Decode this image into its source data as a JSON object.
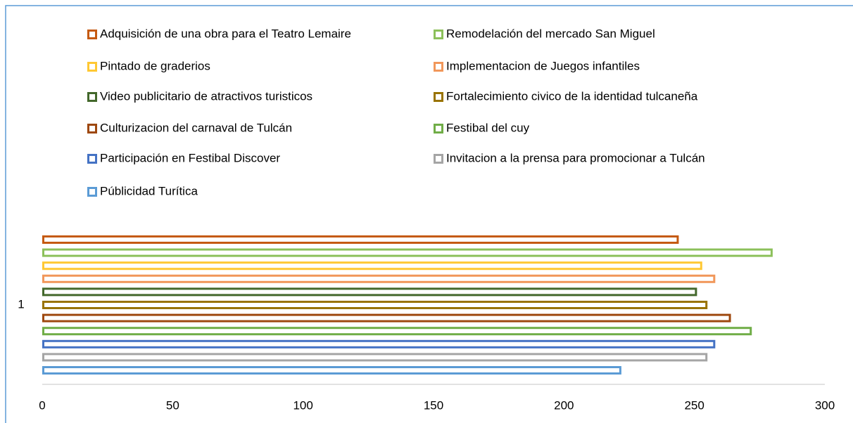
{
  "chart_data": {
    "type": "bar",
    "orientation": "horizontal",
    "categories": [
      "1"
    ],
    "series": [
      {
        "name": "Adquisición de una obra para el Teatro Lemaire",
        "color": "#c55a11",
        "values": [
          244
        ]
      },
      {
        "name": "Remodelación del mercado San Miguel",
        "color": "#8cc05a",
        "values": [
          280
        ]
      },
      {
        "name": "Pintado de graderios",
        "color": "#ffc833",
        "values": [
          253
        ]
      },
      {
        "name": "Implementacion de Juegos infantiles",
        "color": "#f1975a",
        "values": [
          258
        ]
      },
      {
        "name": "Video publicitario de atractivos turisticos",
        "color": "#43682b",
        "values": [
          251
        ]
      },
      {
        "name": "Fortalecimiento civico de la identidad tulcaneña",
        "color": "#997300",
        "values": [
          255
        ]
      },
      {
        "name": "Culturizacion del carnaval de Tulcán",
        "color": "#9e480e",
        "values": [
          264
        ]
      },
      {
        "name": "Festibal del cuy",
        "color": "#70ad47",
        "values": [
          272
        ]
      },
      {
        "name": "Participación en Festibal Discover",
        "color": "#4472c4",
        "values": [
          258
        ]
      },
      {
        "name": "Invitacion a la prensa para promocionar a Tulcán",
        "color": "#a5a5a5",
        "values": [
          255
        ]
      },
      {
        "name": "Públicidad Turítica",
        "color": "#5b9bd5",
        "values": [
          222
        ]
      }
    ],
    "xlim": [
      0,
      300
    ],
    "xticks": [
      0,
      50,
      100,
      150,
      200,
      250,
      300
    ],
    "grid": false,
    "legend": "top"
  }
}
